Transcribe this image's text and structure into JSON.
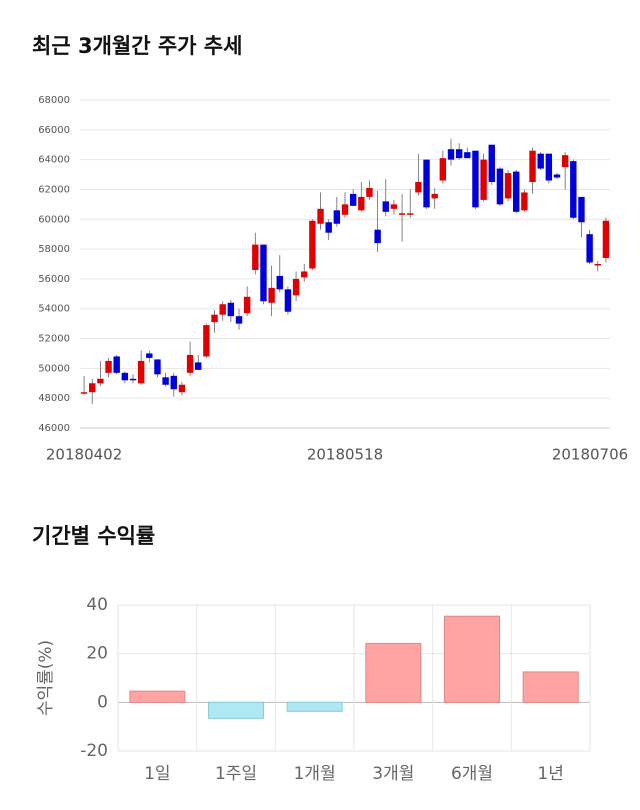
{
  "chart_data": [
    {
      "type": "candlestick",
      "title": "최근 3개월간 주가 추세",
      "categories": [
        "20180402",
        null,
        null,
        null,
        null,
        null,
        null,
        null,
        null,
        null,
        null,
        null,
        null,
        null,
        null,
        null,
        null,
        null,
        null,
        null,
        null,
        null,
        null,
        null,
        null,
        null,
        null,
        null,
        null,
        null,
        null,
        null,
        "20180518",
        null,
        null,
        null,
        null,
        null,
        null,
        null,
        null,
        null,
        null,
        null,
        null,
        null,
        null,
        null,
        null,
        null,
        null,
        null,
        null,
        null,
        null,
        null,
        null,
        null,
        null,
        null,
        null,
        null,
        null,
        null,
        "20180706"
      ],
      "open": [
        48300,
        48400,
        49000,
        49700,
        50800,
        49700,
        49300,
        49000,
        51000,
        50600,
        49400,
        49500,
        48400,
        49700,
        50400,
        50800,
        53100,
        53600,
        54400,
        53500,
        53700,
        56600,
        58300,
        54400,
        56200,
        55300,
        54900,
        56100,
        56700,
        59700,
        59800,
        60600,
        60300,
        61700,
        60600,
        61500,
        59300,
        61200,
        60700,
        60300,
        60300,
        61800,
        64000,
        61400,
        62600,
        64700,
        64700,
        64500,
        64600,
        61300,
        65000,
        63400,
        61400,
        63200,
        60600,
        62500,
        64400,
        64400,
        63000,
        63500,
        63900,
        61500,
        59000,
        56900,
        57400
      ],
      "high": [
        49500,
        49300,
        50500,
        50700,
        50900,
        49800,
        49600,
        51200,
        51200,
        50600,
        49700,
        49700,
        49100,
        51800,
        50900,
        53000,
        53900,
        54500,
        54600,
        54000,
        55500,
        59100,
        58300,
        56900,
        57600,
        55500,
        56500,
        57000,
        60000,
        61800,
        60000,
        61500,
        61800,
        62000,
        62500,
        62600,
        61900,
        62700,
        61300,
        61700,
        62000,
        64400,
        64000,
        62100,
        64600,
        65400,
        65100,
        64800,
        64600,
        64400,
        65000,
        63500,
        63300,
        63300,
        62000,
        64800,
        64500,
        64400,
        63100,
        64500,
        64000,
        61500,
        59300,
        57200,
        60100
      ],
      "low": [
        48200,
        47600,
        48800,
        49400,
        49600,
        49000,
        49000,
        48900,
        50400,
        49400,
        48800,
        48100,
        48200,
        49500,
        49900,
        50700,
        52400,
        53200,
        53100,
        52600,
        53500,
        56300,
        54300,
        53500,
        55100,
        53600,
        54500,
        55800,
        56600,
        59300,
        58600,
        59500,
        60100,
        61000,
        60500,
        61300,
        57800,
        60200,
        60300,
        58500,
        60100,
        61600,
        60700,
        60700,
        62400,
        63600,
        64000,
        64100,
        60700,
        61200,
        62300,
        60900,
        61200,
        60400,
        60500,
        61700,
        63300,
        62400,
        62700,
        62000,
        60000,
        58800,
        57000,
        56500,
        57100
      ],
      "close": [
        48400,
        49000,
        49300,
        50500,
        49700,
        49200,
        49200,
        50500,
        50700,
        49600,
        48900,
        48600,
        48900,
        50900,
        49900,
        52900,
        53600,
        54300,
        53500,
        53000,
        54800,
        58300,
        54500,
        55400,
        55300,
        53800,
        56000,
        56500,
        59900,
        60700,
        59100,
        59700,
        61000,
        60900,
        61500,
        62100,
        58400,
        60500,
        61000,
        60400,
        60400,
        62500,
        60800,
        61700,
        64100,
        64000,
        64100,
        64100,
        60800,
        64000,
        62500,
        61000,
        63100,
        60500,
        61800,
        64600,
        63400,
        62600,
        62800,
        64300,
        60100,
        59800,
        57100,
        57000,
        59900
      ],
      "up_color": "#e00000",
      "down_color": "#0000dd",
      "ylim": [
        46000,
        68000
      ],
      "yticks": [
        46000,
        48000,
        50000,
        52000,
        54000,
        56000,
        58000,
        60000,
        62000,
        64000,
        66000,
        68000
      ],
      "grid": true
    },
    {
      "type": "bar",
      "title": "기간별 수익률",
      "ylabel": "수익률(%)",
      "categories": [
        "1일",
        "1주일",
        "1개월",
        "3개월",
        "6개월",
        "1년"
      ],
      "values": [
        4.6,
        -6.6,
        -3.7,
        24.2,
        35.4,
        12.5
      ],
      "positive_color": "#ffa3a3",
      "negative_color": "#aee8f0",
      "ylim": [
        -20,
        40
      ],
      "yticks": [
        -20,
        0,
        20,
        40
      ],
      "grid": true
    }
  ]
}
